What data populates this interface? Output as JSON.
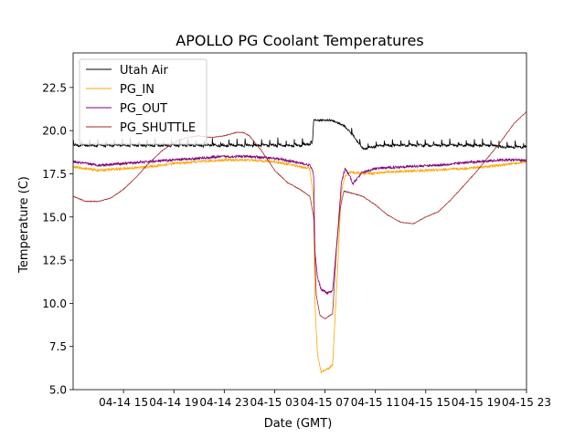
{
  "chart_data": {
    "type": "line",
    "title": "APOLLO PG Coolant Temperatures",
    "xlabel": "Date (GMT)",
    "ylabel": "Temperature (C)",
    "x_unit": "hours since 04-14 00:00 GMT",
    "xlim": [
      11.0,
      47.0
    ],
    "ylim": [
      5.0,
      24.5
    ],
    "grid": false,
    "legend_position": "top-left",
    "x_ticks": [
      {
        "x": 15,
        "label": "04-14 15"
      },
      {
        "x": 19,
        "label": "04-14 19"
      },
      {
        "x": 23,
        "label": "04-14 23"
      },
      {
        "x": 27,
        "label": "04-15 03"
      },
      {
        "x": 31,
        "label": "04-15 07"
      },
      {
        "x": 35,
        "label": "04-15 11"
      },
      {
        "x": 39,
        "label": "04-15 15"
      },
      {
        "x": 43,
        "label": "04-15 19"
      },
      {
        "x": 47,
        "label": "04-15 23"
      }
    ],
    "y_ticks": [
      {
        "y": 5.0,
        "label": "5.0"
      },
      {
        "y": 7.5,
        "label": "7.5"
      },
      {
        "y": 10.0,
        "label": "10.0"
      },
      {
        "y": 12.5,
        "label": "12.5"
      },
      {
        "y": 15.0,
        "label": "15.0"
      },
      {
        "y": 17.5,
        "label": "17.5"
      },
      {
        "y": 20.0,
        "label": "20.0"
      },
      {
        "y": 22.5,
        "label": "22.5"
      }
    ],
    "series": [
      {
        "name": "Utah Air",
        "color": "#000000",
        "pattern": "sawtooth",
        "x": [
          11.0,
          14.0,
          17.0,
          20.0,
          22.5,
          25.0,
          27.5,
          29.0,
          30.0,
          30.1,
          31.5,
          32.5,
          33.0,
          34.0,
          35.5,
          38.0,
          41.0,
          43.0,
          44.5,
          45.0,
          47.0
        ],
        "y": [
          19.2,
          19.2,
          19.2,
          19.2,
          19.2,
          19.2,
          19.2,
          19.2,
          19.3,
          20.6,
          20.6,
          20.3,
          20.0,
          19.0,
          19.2,
          19.2,
          19.2,
          19.2,
          19.2,
          19.1,
          19.1
        ]
      },
      {
        "name": "PG_IN",
        "color": "#ffa500",
        "pattern": "noise",
        "x": [
          11.0,
          13.0,
          15.0,
          17.0,
          19.0,
          21.0,
          23.0,
          25.0,
          27.0,
          28.5,
          29.8,
          30.1,
          30.2,
          30.4,
          30.7,
          31.2,
          31.6,
          32.0,
          32.3,
          32.6,
          33.0,
          34.0,
          36.0,
          39.0,
          42.0,
          45.0,
          47.0
        ],
        "y": [
          17.9,
          17.7,
          17.8,
          17.9,
          18.1,
          18.2,
          18.3,
          18.3,
          18.2,
          18.0,
          17.8,
          16.0,
          10.0,
          7.0,
          6.0,
          6.2,
          6.4,
          12.0,
          16.5,
          17.4,
          17.6,
          17.5,
          17.6,
          17.7,
          17.8,
          18.0,
          18.2
        ]
      },
      {
        "name": "PG_OUT",
        "color": "#800080",
        "pattern": "noise",
        "x": [
          11.0,
          13.0,
          15.0,
          17.0,
          19.0,
          21.0,
          23.0,
          25.0,
          27.0,
          28.5,
          29.8,
          30.1,
          30.2,
          30.4,
          30.7,
          31.2,
          31.6,
          32.0,
          32.3,
          32.6,
          33.0,
          33.2,
          33.5,
          34.0,
          35.0,
          37.0,
          40.0,
          43.0,
          45.0,
          47.0
        ],
        "y": [
          18.2,
          18.0,
          18.1,
          18.2,
          18.3,
          18.4,
          18.5,
          18.5,
          18.4,
          18.2,
          18.0,
          17.5,
          13.0,
          11.5,
          10.8,
          10.6,
          10.7,
          14.0,
          17.0,
          17.8,
          17.3,
          16.9,
          17.2,
          17.6,
          17.8,
          17.9,
          18.0,
          18.2,
          18.3,
          18.3
        ]
      },
      {
        "name": "PG_SHUTTLE",
        "color": "#a52a2a",
        "pattern": "smooth",
        "x": [
          11.0,
          12.0,
          13.0,
          14.0,
          15.0,
          16.0,
          17.0,
          18.0,
          19.0,
          20.0,
          21.0,
          22.0,
          23.0,
          24.0,
          24.5,
          25.0,
          26.0,
          27.0,
          28.0,
          29.0,
          29.8,
          30.1,
          30.3,
          30.6,
          31.0,
          31.4,
          31.6,
          31.9,
          32.2,
          32.5,
          33.0,
          34.0,
          35.0,
          36.0,
          37.0,
          38.0,
          39.0,
          40.0,
          41.0,
          42.0,
          43.0,
          44.0,
          45.0,
          46.0,
          47.0
        ],
        "y": [
          16.2,
          15.9,
          15.9,
          16.1,
          16.6,
          17.3,
          18.1,
          18.8,
          19.3,
          19.6,
          19.7,
          19.6,
          19.7,
          19.9,
          19.9,
          19.7,
          18.8,
          17.7,
          17.0,
          16.6,
          16.2,
          15.0,
          10.5,
          9.3,
          9.1,
          9.3,
          9.4,
          13.0,
          15.5,
          16.5,
          16.4,
          16.2,
          15.7,
          15.1,
          14.7,
          14.6,
          15.0,
          15.3,
          16.0,
          16.8,
          17.6,
          18.5,
          19.4,
          20.4,
          21.1
        ]
      }
    ]
  }
}
